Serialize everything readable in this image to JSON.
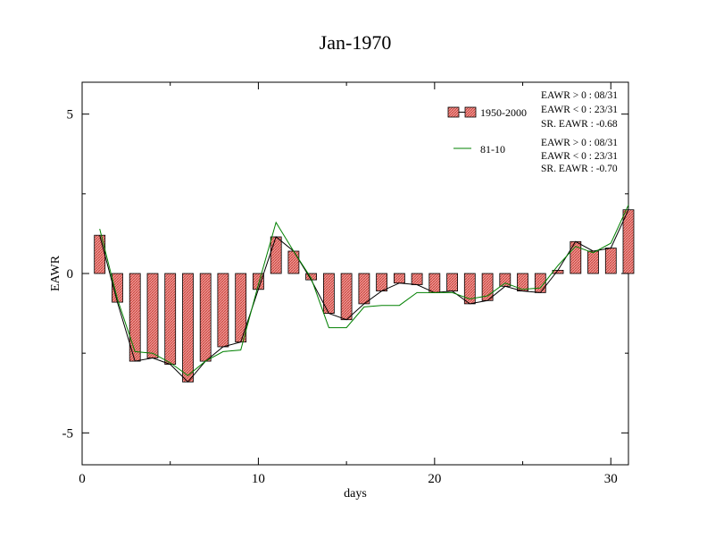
{
  "chart_data": {
    "type": "bar",
    "title": "Jan-1970",
    "xlabel": "days",
    "ylabel": "EAWR",
    "xlim": [
      0,
      31
    ],
    "ylim": [
      -6,
      6
    ],
    "x_ticks": [
      0,
      10,
      20,
      30
    ],
    "y_ticks": [
      5,
      0,
      -5
    ],
    "x_tick_labels": [
      "0",
      "10",
      "20",
      "30"
    ],
    "y_tick_labels": [
      "5",
      "0",
      "-5"
    ],
    "grid": false,
    "legend_position": "top-right",
    "days": [
      1,
      2,
      3,
      4,
      5,
      6,
      7,
      8,
      9,
      10,
      11,
      12,
      13,
      14,
      15,
      16,
      17,
      18,
      19,
      20,
      21,
      22,
      23,
      24,
      25,
      26,
      27,
      28,
      29,
      30,
      31
    ],
    "series": [
      {
        "name": "1950-2000",
        "style": "bar",
        "values": [
          1.2,
          -0.9,
          -2.75,
          -2.65,
          -2.85,
          -3.4,
          -2.75,
          -2.3,
          -2.15,
          -0.5,
          1.15,
          0.7,
          -0.2,
          -1.25,
          -1.45,
          -0.95,
          -0.55,
          -0.3,
          -0.35,
          -0.6,
          -0.55,
          -0.95,
          -0.85,
          -0.4,
          -0.55,
          -0.6,
          0.1,
          1.0,
          0.7,
          0.8,
          2.0
        ],
        "fill_color": "#f28b8b",
        "line_color": "#000000"
      },
      {
        "name": "81-10",
        "style": "line",
        "values": [
          1.4,
          -0.8,
          -2.45,
          -2.5,
          -2.8,
          -3.2,
          -2.75,
          -2.45,
          -2.4,
          -0.35,
          1.6,
          0.7,
          -0.15,
          -1.7,
          -1.7,
          -1.05,
          -1.0,
          -1.0,
          -0.6,
          -0.6,
          -0.6,
          -0.8,
          -0.7,
          -0.3,
          -0.5,
          -0.45,
          0.25,
          0.85,
          0.65,
          0.95,
          2.15
        ],
        "color": "#008000"
      }
    ],
    "legend": {
      "entries": [
        {
          "label": "1950-2000",
          "style": "bar"
        },
        {
          "label": "81-10",
          "style": "line"
        }
      ]
    },
    "annotations": {
      "block1": [
        "EAWR > 0 : 08/31",
        "EAWR < 0 : 23/31",
        "SR. EAWR : -0.68"
      ],
      "block2": [
        "EAWR > 0 : 08/31",
        "EAWR < 0 : 23/31",
        "SR. EAWR : -0.70"
      ]
    }
  }
}
